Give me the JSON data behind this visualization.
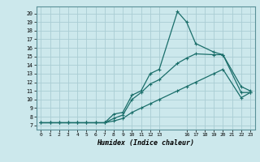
{
  "xlabel": "Humidex (Indice chaleur)",
  "bg_color": "#cce8ec",
  "grid_color": "#aacdd4",
  "line_color": "#1a6e6a",
  "xlim": [
    -0.5,
    23.5
  ],
  "ylim": [
    6.5,
    20.8
  ],
  "xticks": [
    0,
    1,
    2,
    3,
    4,
    5,
    6,
    7,
    8,
    9,
    10,
    11,
    12,
    13,
    16,
    17,
    18,
    19,
    20,
    21,
    22,
    23
  ],
  "yticks": [
    7,
    8,
    9,
    10,
    11,
    12,
    13,
    14,
    15,
    16,
    17,
    18,
    19,
    20
  ],
  "line1_x": [
    0,
    1,
    2,
    3,
    4,
    5,
    6,
    7,
    8,
    9,
    10,
    11,
    12,
    13,
    15,
    16,
    17,
    19,
    20,
    22,
    23
  ],
  "line1_y": [
    7.3,
    7.3,
    7.3,
    7.3,
    7.3,
    7.3,
    7.3,
    7.3,
    8.3,
    8.5,
    10.5,
    11.0,
    13.0,
    13.5,
    20.2,
    19.0,
    16.5,
    15.5,
    15.2,
    11.5,
    11.0
  ],
  "line2_x": [
    0,
    1,
    2,
    3,
    4,
    5,
    6,
    7,
    8,
    9,
    10,
    11,
    12,
    13,
    15,
    16,
    17,
    19,
    20,
    22,
    23
  ],
  "line2_y": [
    7.3,
    7.3,
    7.3,
    7.3,
    7.3,
    7.3,
    7.3,
    7.3,
    7.8,
    8.2,
    10.0,
    10.8,
    11.8,
    12.3,
    14.2,
    14.8,
    15.3,
    15.2,
    15.2,
    10.8,
    10.8
  ],
  "line3_x": [
    0,
    1,
    2,
    3,
    4,
    5,
    6,
    7,
    8,
    9,
    10,
    11,
    12,
    13,
    15,
    16,
    17,
    19,
    20,
    22,
    23
  ],
  "line3_y": [
    7.3,
    7.3,
    7.3,
    7.3,
    7.3,
    7.3,
    7.3,
    7.3,
    7.5,
    7.8,
    8.5,
    9.0,
    9.5,
    10.0,
    11.0,
    11.5,
    12.0,
    13.0,
    13.5,
    10.2,
    10.8
  ]
}
